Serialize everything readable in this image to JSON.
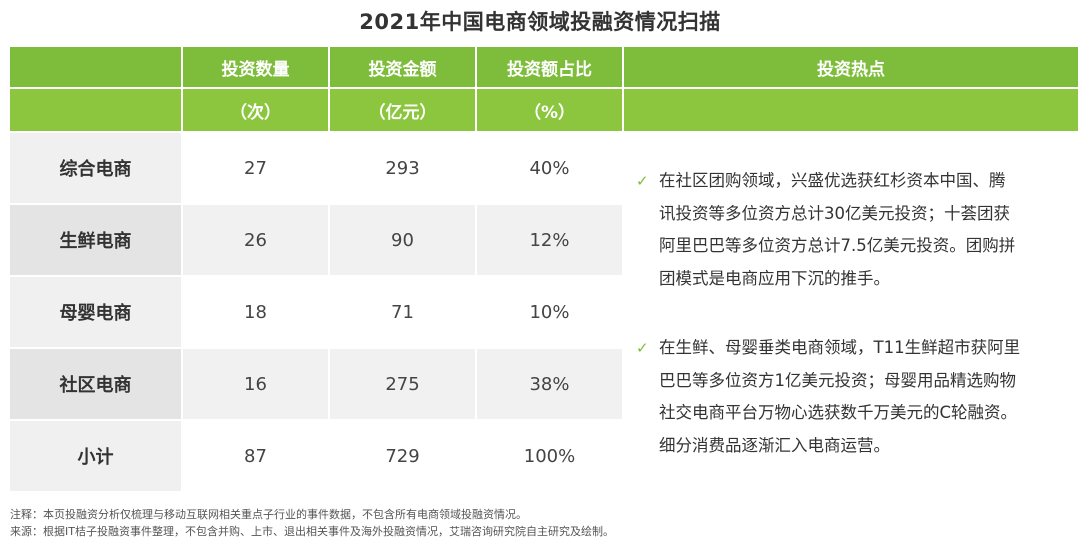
{
  "title": "2021年中国电商领域投融资情况扫描",
  "colors": {
    "header_dark": "#7dbd3b",
    "header_light": "#8cc63f",
    "row_gray": "#efefef",
    "row_dark_gray": "#e3e3e3"
  },
  "headers": [
    {
      "label": "投资数量",
      "unit": "（次）"
    },
    {
      "label": "投资金额",
      "unit": "（亿元）"
    },
    {
      "label": "投资额占比",
      "unit": "（%）"
    },
    {
      "label": "投资热点",
      "unit": ""
    }
  ],
  "rows": [
    {
      "name": "综合电商",
      "count": "27",
      "amount": "293",
      "share": "40%"
    },
    {
      "name": "生鲜电商",
      "count": "26",
      "amount": "90",
      "share": "12%"
    },
    {
      "name": "母婴电商",
      "count": "18",
      "amount": "71",
      "share": "10%"
    },
    {
      "name": "社区电商",
      "count": "16",
      "amount": "275",
      "share": "38%"
    },
    {
      "name": "小计",
      "count": "87",
      "amount": "729",
      "share": "100%"
    }
  ],
  "hotspots": [
    {
      "check": "✓",
      "lines": [
        "在社区团购领域，兴盛优选获红杉资本中国、腾",
        "讯投资等多位资方总计30亿美元投资；十荟团获",
        "阿里巴巴等多位资方总计7.5亿美元投资。团购拼",
        "团模式是电商应用下沉的推手。"
      ]
    },
    {
      "check": "✓",
      "lines": [
        "在生鲜、母婴垂类电商领域，T11生鲜超市获阿里",
        "巴巴等多位资方1亿美元投资；母婴用品精选购物",
        "社交电商平台万物心选获数千万美元的C轮融资。",
        "细分消费品逐渐汇入电商运营。"
      ]
    }
  ],
  "notes": {
    "note": "注释：本页投融资分析仅梳理与移动互联网相关重点子行业的事件数据，不包含所有电商领域投融资情况。",
    "source": "来源：根据IT桔子投融资事件整理，不包含并购、上市、退出相关事件及海外投融资情况，艾瑞咨询研究院自主研究及绘制。"
  }
}
